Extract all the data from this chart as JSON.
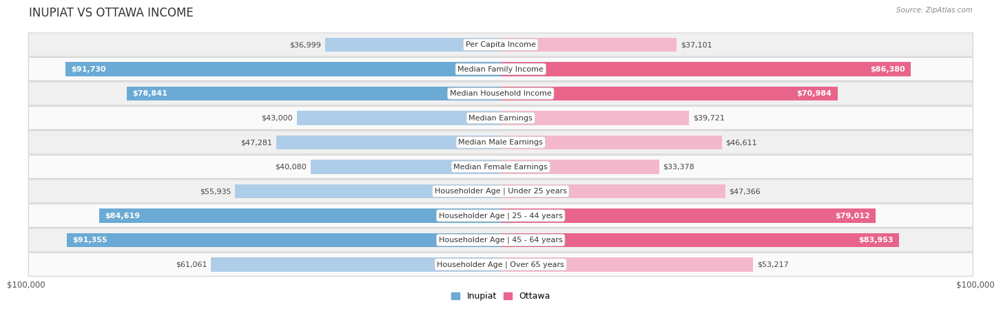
{
  "title": "INUPIAT VS OTTAWA INCOME",
  "source": "Source: ZipAtlas.com",
  "categories": [
    "Per Capita Income",
    "Median Family Income",
    "Median Household Income",
    "Median Earnings",
    "Median Male Earnings",
    "Median Female Earnings",
    "Householder Age | Under 25 years",
    "Householder Age | 25 - 44 years",
    "Householder Age | 45 - 64 years",
    "Householder Age | Over 65 years"
  ],
  "inupiat_values": [
    36999,
    91730,
    78841,
    43000,
    47281,
    40080,
    55935,
    84619,
    91355,
    61061
  ],
  "ottawa_values": [
    37101,
    86380,
    70984,
    39721,
    46611,
    33378,
    47366,
    79012,
    83953,
    53217
  ],
  "max_value": 100000,
  "inupiat_color_light": "#aecde8",
  "inupiat_color_dark": "#6aaad4",
  "ottawa_color_light": "#f4b8cc",
  "ottawa_color_dark": "#e8648a",
  "dark_threshold": 0.65,
  "inupiat_label": "Inupiat",
  "ottawa_label": "Ottawa",
  "bg_color": "#ffffff",
  "row_bg_even": "#f0f0f0",
  "row_bg_odd": "#fafafa",
  "label_fontsize": 8.0,
  "title_fontsize": 12,
  "axis_label_fontsize": 8.5,
  "value_fontsize": 8.0
}
